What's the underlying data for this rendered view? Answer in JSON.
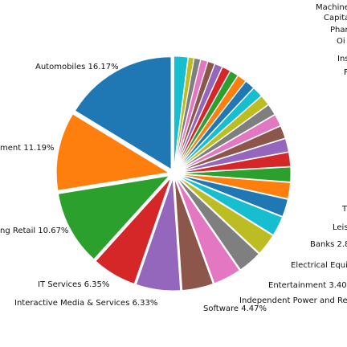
{
  "chart_data": {
    "type": "pie",
    "title": "",
    "visible_labels": [
      {
        "text": "Automobiles 16.17%"
      },
      {
        "text": "ment 11.19%"
      },
      {
        "text": "ng Retail 10.67%"
      },
      {
        "text": "IT Services 6.35%"
      },
      {
        "text": "Interactive Media & Services 6.33%"
      },
      {
        "text": "Software 4.47%"
      },
      {
        "text": "Independent Power and Re"
      },
      {
        "text": "Entertainment 3.40"
      },
      {
        "text": "Electrical Equi"
      },
      {
        "text": "Banks 2.8"
      },
      {
        "text": "Leis"
      },
      {
        "text": "T"
      },
      {
        "text": "Machine"
      },
      {
        "text": "Capita"
      },
      {
        "text": "Phar"
      },
      {
        "text": "Oi"
      },
      {
        "text": "Ins"
      },
      {
        "text": "F"
      }
    ],
    "slices": [
      {
        "label": "Automobiles",
        "value": 16.17,
        "color": "#1f77b4"
      },
      {
        "label": "ment",
        "value": 11.19,
        "color": "#ff7f0e"
      },
      {
        "label": "ng Retail",
        "value": 10.67,
        "color": "#2ca02c"
      },
      {
        "label": "IT Services",
        "value": 6.35,
        "color": "#d62728"
      },
      {
        "label": "Interactive Media & Services",
        "value": 6.33,
        "color": "#9467bd"
      },
      {
        "label": "Software",
        "value": 4.47,
        "color": "#8c564b"
      },
      {
        "label": "Independent Power and Re",
        "value": 4.0,
        "color": "#e377c2"
      },
      {
        "label": "Entertainment",
        "value": 3.4,
        "color": "#7f7f7f"
      },
      {
        "label": "Electrical Equi",
        "value": 3.1,
        "color": "#bcbd22"
      },
      {
        "label": "Banks",
        "value": 2.8,
        "color": "#17becf"
      },
      {
        "label": "Leis",
        "value": 2.5,
        "color": "#1f77b4"
      },
      {
        "label": "T",
        "value": 2.3,
        "color": "#ff7f0e"
      },
      {
        "label": "",
        "value": 2.1,
        "color": "#2ca02c"
      },
      {
        "label": "",
        "value": 2.0,
        "color": "#d62728"
      },
      {
        "label": "",
        "value": 1.9,
        "color": "#9467bd"
      },
      {
        "label": "",
        "value": 1.8,
        "color": "#8c564b"
      },
      {
        "label": "",
        "value": 1.7,
        "color": "#e377c2"
      },
      {
        "label": "",
        "value": 1.6,
        "color": "#7f7f7f"
      },
      {
        "label": "",
        "value": 1.5,
        "color": "#bcbd22"
      },
      {
        "label": "",
        "value": 1.5,
        "color": "#17becf"
      },
      {
        "label": "Ins",
        "value": 1.4,
        "color": "#1f77b4"
      },
      {
        "label": "Oi",
        "value": 1.3,
        "color": "#ff7f0e"
      },
      {
        "label": "",
        "value": 1.2,
        "color": "#2ca02c"
      },
      {
        "label": "Phar",
        "value": 1.2,
        "color": "#d62728"
      },
      {
        "label": "",
        "value": 1.1,
        "color": "#9467bd"
      },
      {
        "label": "Capita",
        "value": 1.0,
        "color": "#8c564b"
      },
      {
        "label": "Machine",
        "value": 1.0,
        "color": "#e377c2"
      },
      {
        "label": "",
        "value": 0.9,
        "color": "#7f7f7f"
      },
      {
        "label": "",
        "value": 0.8,
        "color": "#bcbd22"
      },
      {
        "label": "",
        "value": 2.0,
        "color": "#17becf"
      }
    ],
    "legend": "none"
  }
}
